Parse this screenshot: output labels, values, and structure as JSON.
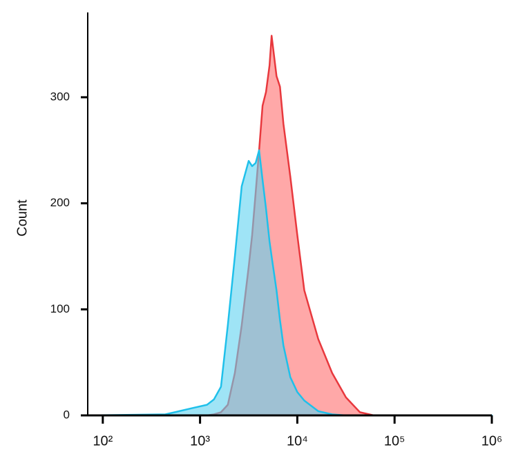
{
  "chart_data": {
    "type": "histogram-overlay",
    "y_label": "Count",
    "xscale": "log",
    "xlim": [
      70,
      1000000
    ],
    "ylim": [
      0,
      380
    ],
    "xticks": [
      {
        "value": 100,
        "label": "10²"
      },
      {
        "value": 1000,
        "label": "10³"
      },
      {
        "value": 10000,
        "label": "10⁴"
      },
      {
        "value": 100000,
        "label": "10⁵"
      },
      {
        "value": 1000000,
        "label": "10⁶"
      }
    ],
    "yticks": [
      0,
      100,
      200,
      300
    ],
    "x": [
      70,
      440,
      611,
      847,
      1180,
      1390,
      1640,
      1930,
      2280,
      2680,
      3160,
      3430,
      3730,
      4050,
      4390,
      4770,
      5180,
      5440,
      6110,
      6630,
      7200,
      8480,
      10000,
      11800,
      16400,
      22800,
      31600,
      44000,
      61100,
      84700,
      1000000
    ],
    "series": [
      {
        "color": "#e8383d",
        "fill": "#ffa8a8",
        "values": [
          0,
          0,
          0,
          0,
          0,
          1,
          3,
          10,
          40,
          85,
          140,
          170,
          210,
          250,
          292,
          305,
          330,
          358,
          320,
          310,
          275,
          225,
          170,
          118,
          72,
          40,
          17,
          3,
          0,
          0,
          0
        ]
      },
      {
        "color": "#1fc0ea",
        "fill": "#5fd2f0",
        "values": [
          0,
          1,
          4,
          7,
          10,
          15,
          27,
          85,
          150,
          216,
          240,
          235,
          238,
          250,
          222,
          195,
          164,
          150,
          118,
          90,
          66,
          36,
          22,
          14,
          4,
          1,
          0,
          0,
          0,
          0,
          0
        ]
      }
    ]
  }
}
